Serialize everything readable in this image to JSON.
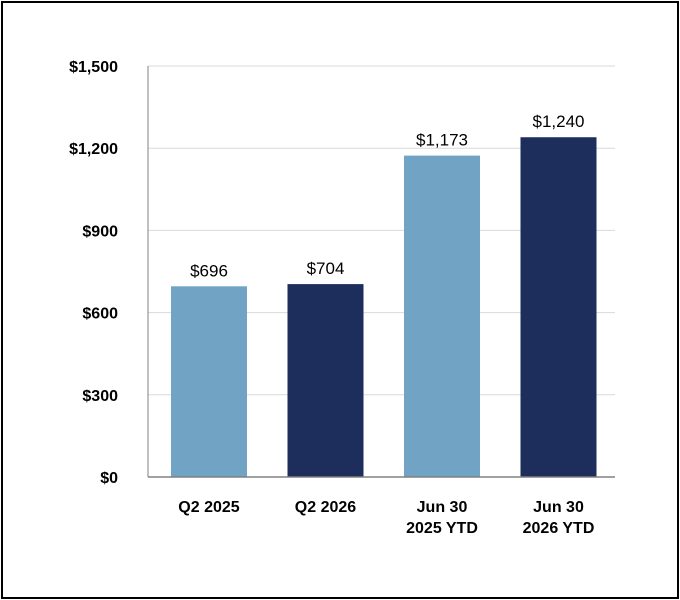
{
  "chart_data": {
    "type": "bar",
    "categories": [
      [
        "Q2 2025"
      ],
      [
        "Q2 2026"
      ],
      [
        "Jun 30",
        "2025 YTD"
      ],
      [
        "Jun 30",
        "2026 YTD"
      ]
    ],
    "values": [
      696,
      704,
      1173,
      1240
    ],
    "value_labels": [
      "$696",
      "$704",
      "$1,173",
      "$1,240"
    ],
    "bar_colors": [
      "#71a3c4",
      "#1d2d5c",
      "#71a3c4",
      "#1d2d5c"
    ],
    "y_ticks": [
      0,
      300,
      600,
      900,
      1200,
      1500
    ],
    "y_tick_labels": [
      "$0",
      "$300",
      "$600",
      "$900",
      "$1,200",
      "$1,500"
    ],
    "ylim": [
      0,
      1500
    ],
    "grid": true,
    "gridline_color": "#d9d9d9",
    "title": "",
    "xlabel": "",
    "ylabel": ""
  }
}
